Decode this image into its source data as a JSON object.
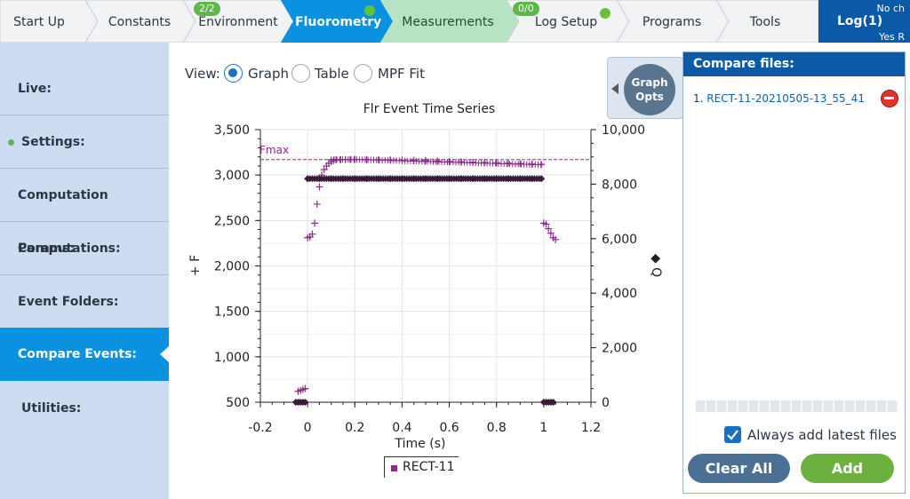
{
  "nav": {
    "tabs": [
      {
        "label": "Start Up"
      },
      {
        "label": "Constants"
      },
      {
        "label": "Environment",
        "badge": "2/2"
      },
      {
        "label": "Fluorometry",
        "status": "active"
      },
      {
        "label": "Measurements",
        "status": "visited"
      },
      {
        "label": "Log Setup",
        "badge": "0/0"
      },
      {
        "label": "Programs"
      },
      {
        "label": "Tools"
      }
    ],
    "log_button": {
      "label": "Log(1)",
      "line1": "No ch",
      "line2": "Yes R"
    }
  },
  "sidebar": {
    "items": [
      {
        "label": "Live:"
      },
      {
        "label": "Settings:",
        "status": "green-dot"
      },
      {
        "label": "Computation Params:"
      },
      {
        "label": "Computations:"
      },
      {
        "label": "Event Folders:"
      },
      {
        "label": "Compare Events:",
        "selected": true
      },
      {
        "label": "Utilities:"
      }
    ]
  },
  "view": {
    "label": "View:",
    "options": [
      "Graph",
      "Table",
      "MPF Fit"
    ],
    "selected": "Graph"
  },
  "graph_opts": {
    "line1": "Graph",
    "line2": "Opts"
  },
  "compare": {
    "title": "Compare files:",
    "files": [
      {
        "index": "1.",
        "name": "RECT-11-20210505-13_55_41"
      }
    ],
    "always_add_label": "Always add latest files",
    "always_add_checked": true,
    "clear_label": "Clear All",
    "add_label": "Add"
  },
  "colors": {
    "nav_active": "#0a92e0",
    "nav_visited": "#b6e3c4",
    "header_blue": "#0a5aa8",
    "series": "#8e2a8a",
    "marker_dark": "#3a1a38"
  },
  "chart_data": {
    "type": "scatter",
    "title": "Flr Event Time Series",
    "xlabel": "Time (s)",
    "ylabel": "+ F",
    "y2label": "◆ Q",
    "xlim": [
      -0.2,
      1.2
    ],
    "ylim": [
      500,
      3500
    ],
    "y2lim": [
      0,
      10000
    ],
    "xticks": [
      "-0.2",
      "0",
      "0.2",
      "0.4",
      "0.6",
      "0.8",
      "1",
      "1.2"
    ],
    "yticks": [
      "500",
      "1,000",
      "1,500",
      "2,000",
      "2,500",
      "3,000",
      "3,500"
    ],
    "y2ticks": [
      "0",
      "2,000",
      "4,000",
      "6,000",
      "8,000",
      "10,000"
    ],
    "reference_line": {
      "label": "Fmax",
      "value": 3170
    },
    "grid": true,
    "legend": {
      "position": "bottom",
      "entries": [
        "RECT-11"
      ]
    },
    "series": [
      {
        "name": "RECT-11",
        "axis": "left",
        "marker": "+",
        "points": [
          [
            -0.04,
            620
          ],
          [
            -0.03,
            630
          ],
          [
            -0.02,
            640
          ],
          [
            -0.01,
            650
          ],
          [
            0.0,
            2310
          ],
          [
            0.01,
            2320
          ],
          [
            0.02,
            2350
          ],
          [
            0.03,
            2470
          ],
          [
            0.04,
            2680
          ],
          [
            0.05,
            2870
          ],
          [
            0.06,
            3000
          ],
          [
            0.07,
            3060
          ],
          [
            0.08,
            3100
          ],
          [
            0.09,
            3130
          ],
          [
            0.1,
            3150
          ],
          [
            0.11,
            3160
          ],
          [
            0.12,
            3165
          ],
          [
            0.14,
            3168
          ],
          [
            0.16,
            3170
          ],
          [
            0.18,
            3172
          ],
          [
            0.2,
            3172
          ],
          [
            0.25,
            3170
          ],
          [
            0.3,
            3168
          ],
          [
            0.35,
            3166
          ],
          [
            0.4,
            3164
          ],
          [
            0.45,
            3161
          ],
          [
            0.5,
            3158
          ],
          [
            0.55,
            3154
          ],
          [
            0.6,
            3150
          ],
          [
            0.65,
            3146
          ],
          [
            0.7,
            3142
          ],
          [
            0.75,
            3138
          ],
          [
            0.8,
            3134
          ],
          [
            0.85,
            3130
          ],
          [
            0.9,
            3126
          ],
          [
            0.95,
            3121
          ],
          [
            0.99,
            3118
          ],
          [
            1.0,
            2470
          ],
          [
            1.01,
            2460
          ],
          [
            1.02,
            2410
          ],
          [
            1.03,
            2360
          ],
          [
            1.04,
            2310
          ],
          [
            1.05,
            2290
          ]
        ]
      },
      {
        "name": "Q",
        "axis": "right",
        "marker": "diamond",
        "points": [
          [
            -0.05,
            0
          ],
          [
            -0.04,
            0
          ],
          [
            -0.03,
            0
          ],
          [
            -0.02,
            0
          ],
          [
            -0.01,
            0
          ],
          [
            0.0,
            8200
          ],
          [
            0.05,
            8200
          ],
          [
            0.1,
            8200
          ],
          [
            0.15,
            8200
          ],
          [
            0.2,
            8200
          ],
          [
            0.25,
            8200
          ],
          [
            0.3,
            8200
          ],
          [
            0.35,
            8200
          ],
          [
            0.4,
            8200
          ],
          [
            0.45,
            8200
          ],
          [
            0.5,
            8200
          ],
          [
            0.55,
            8200
          ],
          [
            0.6,
            8200
          ],
          [
            0.65,
            8200
          ],
          [
            0.7,
            8200
          ],
          [
            0.75,
            8200
          ],
          [
            0.8,
            8200
          ],
          [
            0.85,
            8200
          ],
          [
            0.9,
            8200
          ],
          [
            0.95,
            8200
          ],
          [
            0.99,
            8200
          ],
          [
            1.0,
            0
          ],
          [
            1.01,
            0
          ],
          [
            1.02,
            0
          ],
          [
            1.03,
            0
          ],
          [
            1.04,
            0
          ]
        ]
      }
    ]
  }
}
